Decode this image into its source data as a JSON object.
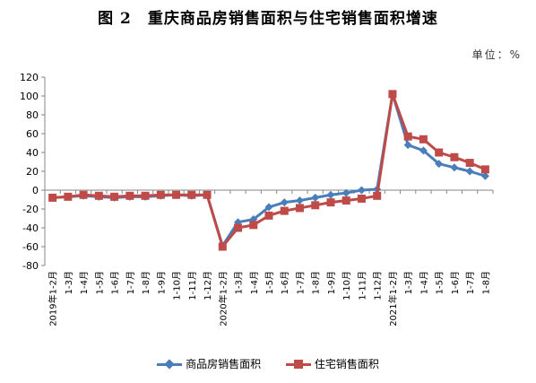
{
  "title": "图 2　重庆商品房销售面积与住宅销售面积增速",
  "unit": "单位：%",
  "chart_data": {
    "type": "line",
    "categories": [
      "2019年1-2月",
      "1-3月",
      "1-4月",
      "1-5月",
      "1-6月",
      "1-7月",
      "1-8月",
      "1-9月",
      "1-10月",
      "1-11月",
      "1-12月",
      "2020年1-2月",
      "1-3月",
      "1-4月",
      "1-5月",
      "1-6月",
      "1-7月",
      "1-8月",
      "1-9月",
      "1-10月",
      "1-11月",
      "1-12月",
      "2021年1-2月",
      "1-3月",
      "1-4月",
      "1-5月",
      "1-6月",
      "1-7月",
      "1-8月"
    ],
    "series": [
      {
        "name": "商品房销售面积",
        "color": "#4a7ebb",
        "marker": "diamond",
        "values": [
          -8,
          -7,
          -6,
          -7,
          -8,
          -7,
          -7,
          -6,
          -5,
          -6,
          -5,
          -59,
          -34,
          -31,
          -18,
          -13,
          -11,
          -8,
          -5,
          -3,
          0,
          1,
          102,
          48,
          42,
          28,
          24,
          20,
          15
        ]
      },
      {
        "name": "住宅销售面积",
        "color": "#be4b48",
        "marker": "square",
        "values": [
          -8,
          -7,
          -5,
          -6,
          -7,
          -6,
          -6,
          -5,
          -5,
          -5,
          -5,
          -60,
          -40,
          -37,
          -27,
          -22,
          -19,
          -16,
          -13,
          -11,
          -9,
          -6,
          102,
          57,
          54,
          40,
          35,
          29,
          22
        ]
      }
    ],
    "ylim": [
      -80,
      120
    ],
    "yticks": [
      -80,
      -60,
      -40,
      -20,
      0,
      20,
      40,
      60,
      80,
      100,
      120
    ],
    "grid": false,
    "legend": "bottom"
  }
}
